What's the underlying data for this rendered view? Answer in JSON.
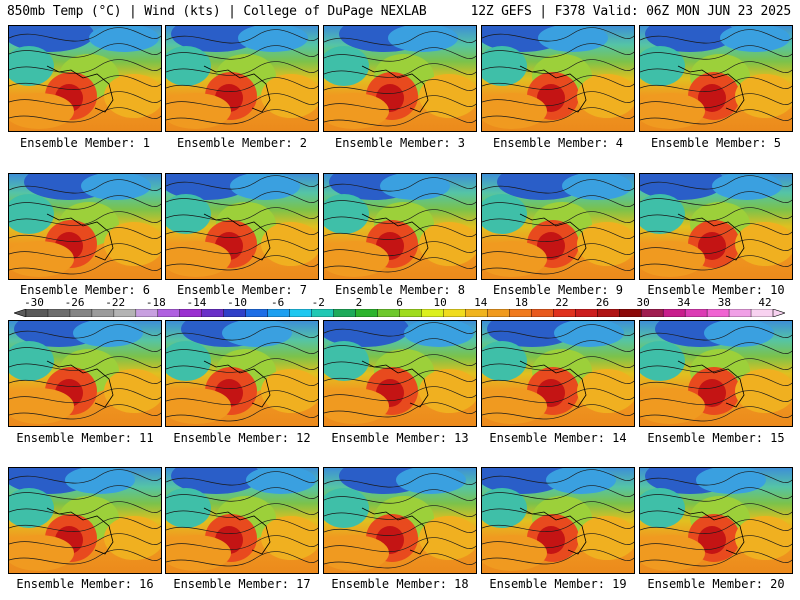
{
  "header": {
    "left": "850mb Temp (°C) | Wind (kts) | College of DuPage NEXLAB",
    "right": "12Z GEFS | F378 Valid: 06Z MON JUN 23 2025"
  },
  "members": [
    "Ensemble Member: 1",
    "Ensemble Member: 2",
    "Ensemble Member: 3",
    "Ensemble Member: 4",
    "Ensemble Member: 5",
    "Ensemble Member: 6",
    "Ensemble Member: 7",
    "Ensemble Member: 8",
    "Ensemble Member: 9",
    "Ensemble Member: 10",
    "Ensemble Member: 11",
    "Ensemble Member: 12",
    "Ensemble Member: 13",
    "Ensemble Member: 14",
    "Ensemble Member: 15",
    "Ensemble Member: 16",
    "Ensemble Member: 17",
    "Ensemble Member: 18",
    "Ensemble Member: 19",
    "Ensemble Member: 20"
  ],
  "colorbar": {
    "ticks": [
      "-30",
      "-26",
      "-22",
      "-18",
      "-14",
      "-10",
      "-6",
      "-2",
      "2",
      "6",
      "10",
      "14",
      "18",
      "22",
      "26",
      "30",
      "34",
      "38",
      "42"
    ],
    "colors": [
      "#5a5a5a",
      "#6e6e6e",
      "#858585",
      "#9c9c9c",
      "#b4b4b4",
      "#c8a0e0",
      "#b060e0",
      "#9a2fd0",
      "#6a30c8",
      "#3040c8",
      "#1e6ee6",
      "#1ea0f0",
      "#1ec8f0",
      "#20c8b4",
      "#1eaa5a",
      "#2db42d",
      "#6ec82d",
      "#a0dc1e",
      "#dcf01e",
      "#f0dc1e",
      "#f0b41e",
      "#f09a1e",
      "#f07a1e",
      "#e85a1e",
      "#e0321e",
      "#cc1e1e",
      "#b01414",
      "#8c0a0a",
      "#a01e50",
      "#c81e8c",
      "#dc3cb4",
      "#f064d2",
      "#f0a0e6",
      "#f8d2f0"
    ]
  }
}
